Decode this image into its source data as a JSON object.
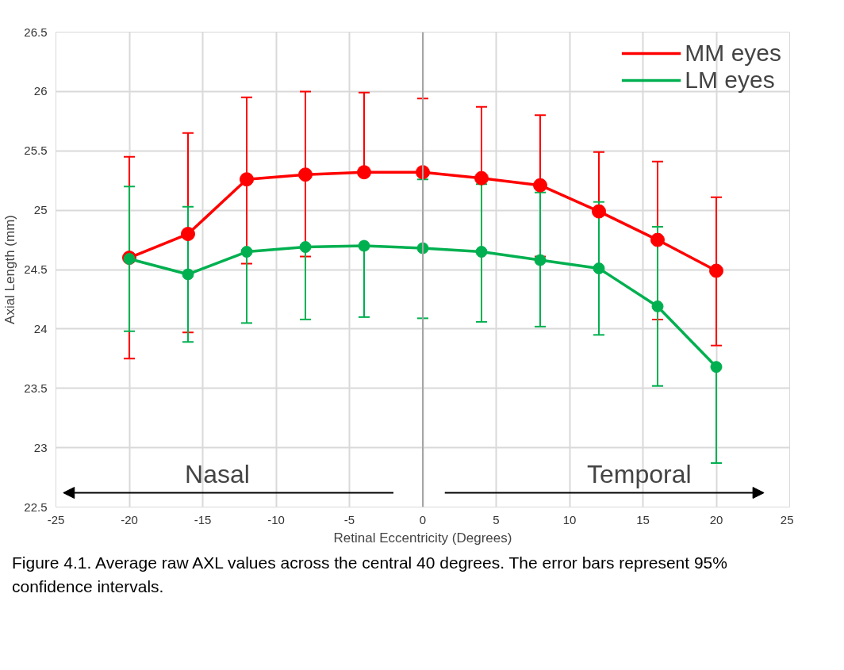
{
  "chart_data": {
    "type": "line",
    "xlabel": "Retinal Eccentricity (Degrees)",
    "ylabel": "Axial Length (mm)",
    "x": [
      -20,
      -16,
      -12,
      -8,
      -4,
      0,
      4,
      8,
      12,
      16,
      20
    ],
    "xlim": [
      -25,
      25
    ],
    "xticks": [
      -25,
      -20,
      -15,
      -10,
      -5,
      0,
      5,
      10,
      15,
      20,
      25
    ],
    "ylim": [
      22.5,
      26.5
    ],
    "yticks": [
      22.5,
      23,
      23.5,
      24,
      24.5,
      25,
      25.5,
      26,
      26.5
    ],
    "grid": true,
    "legend": "top right",
    "marker": "circle",
    "line_style": "solid",
    "series": [
      {
        "name": "MM eyes",
        "color": "#ff0000",
        "values": [
          24.6,
          24.8,
          25.26,
          25.3,
          25.32,
          25.32,
          25.27,
          25.21,
          24.99,
          24.75,
          24.49
        ],
        "errors": [
          [
            23.75,
            25.45
          ],
          [
            23.97,
            25.65
          ],
          [
            24.55,
            25.95
          ],
          [
            24.61,
            26.0
          ],
          [
            25.32,
            25.99
          ],
          [
            25.32,
            25.94
          ],
          [
            25.27,
            25.87
          ],
          [
            24.61,
            25.8
          ],
          [
            24.99,
            25.49
          ],
          [
            24.08,
            25.41
          ],
          [
            23.86,
            25.11
          ]
        ]
      },
      {
        "name": "LM eyes",
        "color": "#00b050",
        "values": [
          24.59,
          24.46,
          24.65,
          24.69,
          24.7,
          24.68,
          24.65,
          24.58,
          24.51,
          24.19,
          23.68
        ],
        "errors": [
          [
            23.98,
            25.2
          ],
          [
            23.89,
            25.03
          ],
          [
            24.05,
            24.65
          ],
          [
            24.08,
            24.69
          ],
          [
            24.1,
            24.7
          ],
          [
            24.09,
            25.26
          ],
          [
            24.06,
            25.22
          ],
          [
            24.02,
            25.15
          ],
          [
            23.95,
            25.07
          ],
          [
            23.52,
            24.86
          ],
          [
            22.87,
            23.68
          ]
        ]
      }
    ],
    "ref_lines": [
      {
        "axis": "x",
        "value": 0,
        "color": "#a6a6a6"
      }
    ],
    "annotations": [
      "Nasal",
      "Temporal",
      "Figure 4.1. Average raw AXL values across the central 40 degrees. The error bars represent 95% confidence intervals."
    ]
  }
}
